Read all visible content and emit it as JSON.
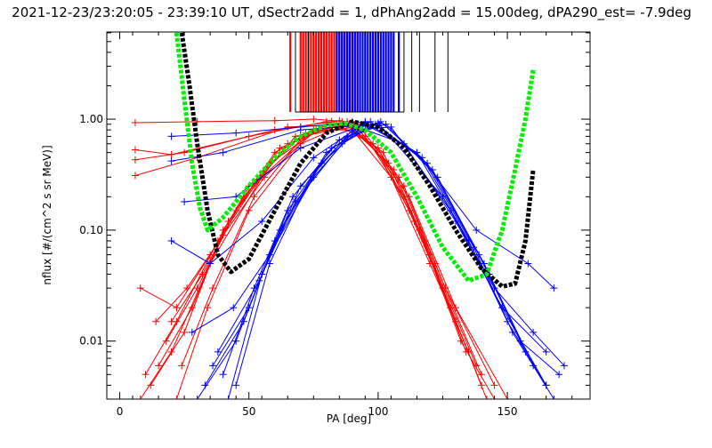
{
  "chart_data": {
    "type": "line",
    "title": "2021-12-23/23:20:05 - 23:39:10 UT, dSectr2add = 1, dPhAng2add = 15.00deg, dPA290_est=  -7.9deg",
    "xlabel": "PA [deg]",
    "ylabel": "nflux [#/(cm^2 s sr MeV)]",
    "xlim": [
      -5,
      182
    ],
    "ylim": [
      0.003,
      6.1
    ],
    "yscale": "log",
    "xticks": [
      0,
      50,
      100,
      150
    ],
    "xtick_labels": [
      "0",
      "50",
      "100",
      "150"
    ],
    "yticks": [
      1,
      0.1,
      0.01
    ],
    "ytick_labels": [
      "1.00",
      "0.10",
      "0.01"
    ],
    "colors": {
      "red": "#ff0000",
      "blue": "#0000ff",
      "black_fit": "#000000",
      "green_fit": "#00ee00"
    },
    "pa_markers": {
      "red": [
        70,
        71,
        72,
        73,
        74,
        75,
        76,
        77,
        78,
        79,
        80,
        81,
        82,
        83,
        84,
        85,
        86,
        87,
        88,
        89,
        90,
        91,
        92,
        66,
        95,
        98
      ],
      "blue": [
        84,
        85,
        86,
        87,
        88,
        89,
        90,
        91,
        92,
        93,
        94,
        95,
        96,
        97,
        98,
        99,
        100,
        101,
        102,
        103,
        104,
        105,
        106,
        108
      ],
      "black": [
        68,
        73,
        103,
        110,
        113,
        116,
        122,
        127
      ]
    },
    "red_series": [
      [
        [
          6,
          0.93
        ],
        [
          30,
          0.95
        ],
        [
          60,
          0.97
        ],
        [
          75,
          1.0
        ],
        [
          88,
          0.95
        ]
      ],
      [
        [
          6,
          0.53
        ],
        [
          20,
          0.48
        ],
        [
          50,
          0.7
        ],
        [
          80,
          0.95
        ]
      ],
      [
        [
          6,
          0.43
        ],
        [
          25,
          0.5
        ],
        [
          60,
          0.8
        ],
        [
          85,
          0.97
        ]
      ],
      [
        [
          6,
          0.31
        ],
        [
          30,
          0.45
        ],
        [
          65,
          0.85
        ],
        [
          88,
          0.9
        ]
      ],
      [
        [
          8,
          0.003
        ],
        [
          20,
          0.008
        ],
        [
          35,
          0.05
        ],
        [
          55,
          0.3
        ],
        [
          75,
          0.8
        ],
        [
          90,
          0.8
        ],
        [
          105,
          0.3
        ],
        [
          120,
          0.05
        ],
        [
          135,
          0.008
        ]
      ],
      [
        [
          10,
          0.005
        ],
        [
          22,
          0.015
        ],
        [
          38,
          0.08
        ],
        [
          58,
          0.4
        ],
        [
          80,
          0.9
        ],
        [
          95,
          0.7
        ],
        [
          110,
          0.2
        ],
        [
          125,
          0.03
        ],
        [
          140,
          0.004
        ]
      ],
      [
        [
          12,
          0.004
        ],
        [
          25,
          0.012
        ],
        [
          40,
          0.1
        ],
        [
          60,
          0.5
        ],
        [
          82,
          0.95
        ],
        [
          98,
          0.6
        ],
        [
          112,
          0.15
        ],
        [
          128,
          0.02
        ],
        [
          142,
          0.003
        ]
      ],
      [
        [
          15,
          0.006
        ],
        [
          28,
          0.02
        ],
        [
          42,
          0.12
        ],
        [
          62,
          0.55
        ],
        [
          84,
          0.9
        ],
        [
          100,
          0.55
        ],
        [
          114,
          0.12
        ],
        [
          130,
          0.015
        ]
      ],
      [
        [
          18,
          0.01
        ],
        [
          30,
          0.03
        ],
        [
          45,
          0.15
        ],
        [
          65,
          0.6
        ],
        [
          86,
          0.95
        ],
        [
          102,
          0.5
        ],
        [
          116,
          0.1
        ],
        [
          132,
          0.01
        ],
        [
          145,
          0.003
        ]
      ],
      [
        [
          20,
          0.015
        ],
        [
          32,
          0.04
        ],
        [
          48,
          0.2
        ],
        [
          68,
          0.7
        ],
        [
          88,
          0.9
        ],
        [
          104,
          0.4
        ],
        [
          118,
          0.08
        ],
        [
          134,
          0.008
        ]
      ],
      [
        [
          8,
          0.03
        ],
        [
          22,
          0.02
        ],
        [
          35,
          0.06
        ],
        [
          50,
          0.25
        ],
        [
          70,
          0.7
        ],
        [
          90,
          0.85
        ],
        [
          106,
          0.35
        ],
        [
          120,
          0.06
        ],
        [
          138,
          0.006
        ]
      ],
      [
        [
          14,
          0.015
        ],
        [
          26,
          0.03
        ],
        [
          40,
          0.09
        ],
        [
          56,
          0.3
        ],
        [
          76,
          0.8
        ],
        [
          92,
          0.9
        ],
        [
          108,
          0.3
        ],
        [
          122,
          0.05
        ],
        [
          140,
          0.005
        ]
      ],
      [
        [
          22,
          0.003
        ],
        [
          34,
          0.02
        ],
        [
          50,
          0.15
        ],
        [
          70,
          0.6
        ],
        [
          90,
          0.95
        ],
        [
          110,
          0.25
        ],
        [
          126,
          0.03
        ],
        [
          145,
          0.004
        ]
      ],
      [
        [
          24,
          0.006
        ],
        [
          36,
          0.03
        ],
        [
          52,
          0.2
        ],
        [
          72,
          0.75
        ],
        [
          92,
          0.85
        ],
        [
          112,
          0.2
        ],
        [
          130,
          0.02
        ],
        [
          150,
          0.003
        ]
      ]
    ],
    "blue_series": [
      [
        [
          20,
          0.7
        ],
        [
          45,
          0.75
        ],
        [
          70,
          0.85
        ],
        [
          95,
          0.95
        ]
      ],
      [
        [
          20,
          0.42
        ],
        [
          40,
          0.5
        ],
        [
          70,
          0.8
        ],
        [
          100,
          0.9
        ]
      ],
      [
        [
          25,
          0.18
        ],
        [
          45,
          0.2
        ],
        [
          70,
          0.55
        ],
        [
          95,
          0.9
        ]
      ],
      [
        [
          30,
          0.003
        ],
        [
          45,
          0.01
        ],
        [
          60,
          0.08
        ],
        [
          78,
          0.4
        ],
        [
          95,
          0.9
        ],
        [
          115,
          0.5
        ],
        [
          135,
          0.08
        ],
        [
          150,
          0.015
        ],
        [
          165,
          0.004
        ]
      ],
      [
        [
          33,
          0.004
        ],
        [
          48,
          0.015
        ],
        [
          62,
          0.1
        ],
        [
          80,
          0.5
        ],
        [
          97,
          0.95
        ],
        [
          117,
          0.45
        ],
        [
          137,
          0.07
        ],
        [
          152,
          0.012
        ],
        [
          168,
          0.003
        ]
      ],
      [
        [
          36,
          0.006
        ],
        [
          50,
          0.02
        ],
        [
          65,
          0.15
        ],
        [
          82,
          0.55
        ],
        [
          99,
          0.9
        ],
        [
          119,
          0.4
        ],
        [
          139,
          0.06
        ],
        [
          155,
          0.01
        ],
        [
          170,
          0.005
        ]
      ],
      [
        [
          40,
          0.005
        ],
        [
          52,
          0.03
        ],
        [
          67,
          0.2
        ],
        [
          85,
          0.65
        ],
        [
          101,
          0.95
        ],
        [
          121,
          0.35
        ],
        [
          141,
          0.05
        ],
        [
          157,
          0.008
        ]
      ],
      [
        [
          42,
          0.003
        ],
        [
          55,
          0.04
        ],
        [
          70,
          0.25
        ],
        [
          88,
          0.7
        ],
        [
          103,
          0.9
        ],
        [
          123,
          0.3
        ],
        [
          143,
          0.04
        ],
        [
          160,
          0.006
        ]
      ],
      [
        [
          28,
          0.012
        ],
        [
          44,
          0.02
        ],
        [
          58,
          0.06
        ],
        [
          75,
          0.3
        ],
        [
          92,
          0.85
        ],
        [
          110,
          0.6
        ],
        [
          130,
          0.12
        ],
        [
          148,
          0.02
        ],
        [
          165,
          0.008
        ]
      ],
      [
        [
          38,
          0.008
        ],
        [
          54,
          0.035
        ],
        [
          68,
          0.18
        ],
        [
          86,
          0.6
        ],
        [
          100,
          0.92
        ],
        [
          125,
          0.2
        ],
        [
          145,
          0.03
        ],
        [
          160,
          0.012
        ],
        [
          172,
          0.006
        ]
      ],
      [
        [
          45,
          0.004
        ],
        [
          58,
          0.05
        ],
        [
          74,
          0.3
        ],
        [
          90,
          0.8
        ],
        [
          105,
          0.85
        ],
        [
          128,
          0.15
        ],
        [
          148,
          0.02
        ],
        [
          165,
          0.004
        ]
      ],
      [
        [
          20,
          0.08
        ],
        [
          35,
          0.05
        ],
        [
          55,
          0.12
        ],
        [
          75,
          0.45
        ],
        [
          95,
          0.93
        ],
        [
          115,
          0.5
        ],
        [
          138,
          0.1
        ],
        [
          158,
          0.05
        ],
        [
          168,
          0.03
        ]
      ]
    ],
    "black_fit": [
      [
        24,
        6
      ],
      [
        27,
        2
      ],
      [
        30,
        0.6
      ],
      [
        34,
        0.15
      ],
      [
        38,
        0.06
      ],
      [
        43,
        0.042
      ],
      [
        50,
        0.055
      ],
      [
        60,
        0.15
      ],
      [
        70,
        0.4
      ],
      [
        80,
        0.75
      ],
      [
        90,
        0.95
      ],
      [
        100,
        0.85
      ],
      [
        110,
        0.55
      ],
      [
        120,
        0.25
      ],
      [
        130,
        0.1
      ],
      [
        140,
        0.045
      ],
      [
        148,
        0.031
      ],
      [
        153,
        0.033
      ],
      [
        157,
        0.08
      ],
      [
        160,
        0.35
      ]
    ],
    "green_fit": [
      [
        22,
        6
      ],
      [
        25,
        1.5
      ],
      [
        28,
        0.4
      ],
      [
        31,
        0.16
      ],
      [
        34,
        0.1
      ],
      [
        40,
        0.13
      ],
      [
        50,
        0.25
      ],
      [
        60,
        0.45
      ],
      [
        70,
        0.7
      ],
      [
        80,
        0.88
      ],
      [
        87,
        0.92
      ],
      [
        95,
        0.8
      ],
      [
        105,
        0.5
      ],
      [
        115,
        0.2
      ],
      [
        125,
        0.07
      ],
      [
        135,
        0.035
      ],
      [
        142,
        0.04
      ],
      [
        148,
        0.1
      ],
      [
        153,
        0.35
      ],
      [
        157,
        1.0
      ],
      [
        160,
        2.8
      ]
    ]
  }
}
